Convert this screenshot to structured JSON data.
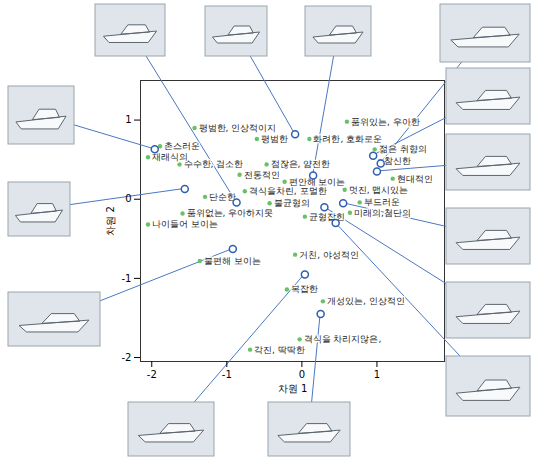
{
  "chart_data": {
    "type": "scatter",
    "xlabel": "차원 1",
    "ylabel": "차원 2",
    "xlim": [
      -2.15,
      1.9
    ],
    "ylim": [
      -2.05,
      1.5
    ],
    "xticks": [
      -2,
      -1,
      0,
      1
    ],
    "yticks": [
      -2,
      -1,
      0,
      1
    ],
    "series": [
      {
        "type": "scatter",
        "marker": "dot",
        "color": "#66c266",
        "labels": [
          "촌스러운",
          "재래식의",
          "평범한, 인상적이지",
          "평범한",
          "화려한, 호화로운",
          "젊은 취향의",
          "참신한",
          "수수한, 검소한",
          "점잖은, 얌전한",
          "전통적인",
          "편안해 보이는",
          "현대적인",
          "멋진, 맵시있는",
          "격식을차린, 포멀한",
          "단순한",
          "불균형의",
          "품위없는, 우아하지못",
          "부드러운",
          "미래의,첨단의",
          "균형잡힌",
          "나이들어 보이는",
          "불편해 보이는",
          "거친, 야성적인",
          "복잡한",
          "개성있는, 인상적인",
          "격식을 차리지않은,",
          "각진, 딱딱한",
          "품위있는, 우아한"
        ],
        "x": [
          -1.89,
          -2.05,
          -1.43,
          -0.6,
          0.1,
          0.97,
          1.04,
          -1.63,
          -0.47,
          -0.83,
          -0.23,
          1.21,
          0.57,
          -0.76,
          -1.29,
          -0.43,
          -1.59,
          0.77,
          0.64,
          0.04,
          -2.05,
          -1.36,
          -0.09,
          -0.2,
          0.28,
          -0.03,
          -0.69,
          0.6
        ],
        "y": [
          0.67,
          0.53,
          0.9,
          0.76,
          0.76,
          0.63,
          0.48,
          0.44,
          0.44,
          0.31,
          0.22,
          0.26,
          0.12,
          0.1,
          0.03,
          -0.05,
          -0.18,
          -0.04,
          -0.17,
          -0.22,
          -0.32,
          -0.78,
          -0.7,
          -1.14,
          -1.29,
          -1.77,
          -1.9,
          0.98
        ]
      },
      {
        "type": "scatter",
        "marker": "circle",
        "color": "#2f5fb0",
        "x": [
          -0.87,
          -0.09,
          0.15,
          1.05,
          0.95,
          1.0,
          0.55,
          0.3,
          0.45,
          -1.96,
          -1.56,
          -0.92,
          0.04,
          0.25
        ],
        "y": [
          -0.04,
          0.82,
          0.3,
          0.45,
          0.55,
          0.35,
          -0.05,
          -0.1,
          -0.3,
          0.63,
          0.13,
          -0.63,
          -0.95,
          -1.45
        ]
      }
    ]
  }
}
